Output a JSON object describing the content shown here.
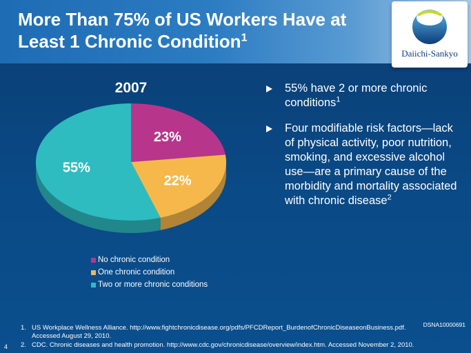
{
  "slide": {
    "title_main": "More Than 75% of US Workers Have at Least 1 Chronic Condition",
    "title_sup": "1",
    "logo_text": "Daiichi-Sankyo",
    "code": "DSNA10000691",
    "page_number": "4"
  },
  "colors": {
    "no_chronic": "#b8358c",
    "one_chronic": "#f7b84b",
    "two_or_more": "#2ebcc0",
    "background": "#0b4a86"
  },
  "chart_data": {
    "type": "pie",
    "title": "2007",
    "slices": [
      {
        "label": "No chronic condition",
        "value": 23,
        "display": "23%",
        "color": "#b8358c"
      },
      {
        "label": "One chronic condition",
        "value": 22,
        "display": "22%",
        "color": "#f7b84b"
      },
      {
        "label": "Two or more chronic conditions",
        "value": 55,
        "display": "55%",
        "color": "#2ebcc0"
      }
    ],
    "legend_position": "bottom"
  },
  "bullets": [
    {
      "text": "55% have 2 or more chronic conditions",
      "sup": "1"
    },
    {
      "text": "Four modifiable risk factors—lack of physical activity, poor nutrition, smoking, and excessive alcohol use—are a primary cause of the morbidity and mortality associated with chronic disease",
      "sup": "2"
    }
  ],
  "references": [
    {
      "num": "1.",
      "text": "US Workplace Wellness Alliance. http://www.fightchronicdisease.org/pdfs/PFCDReport_BurdenofChronicDiseaseonBusiness.pdf. Accessed August 29, 2010."
    },
    {
      "num": "2.",
      "text": "CDC. Chronic diseases and health promotion. http://www.cdc.gov/chronicdisease/overview/index.htm. Accessed November 2, 2010."
    }
  ]
}
